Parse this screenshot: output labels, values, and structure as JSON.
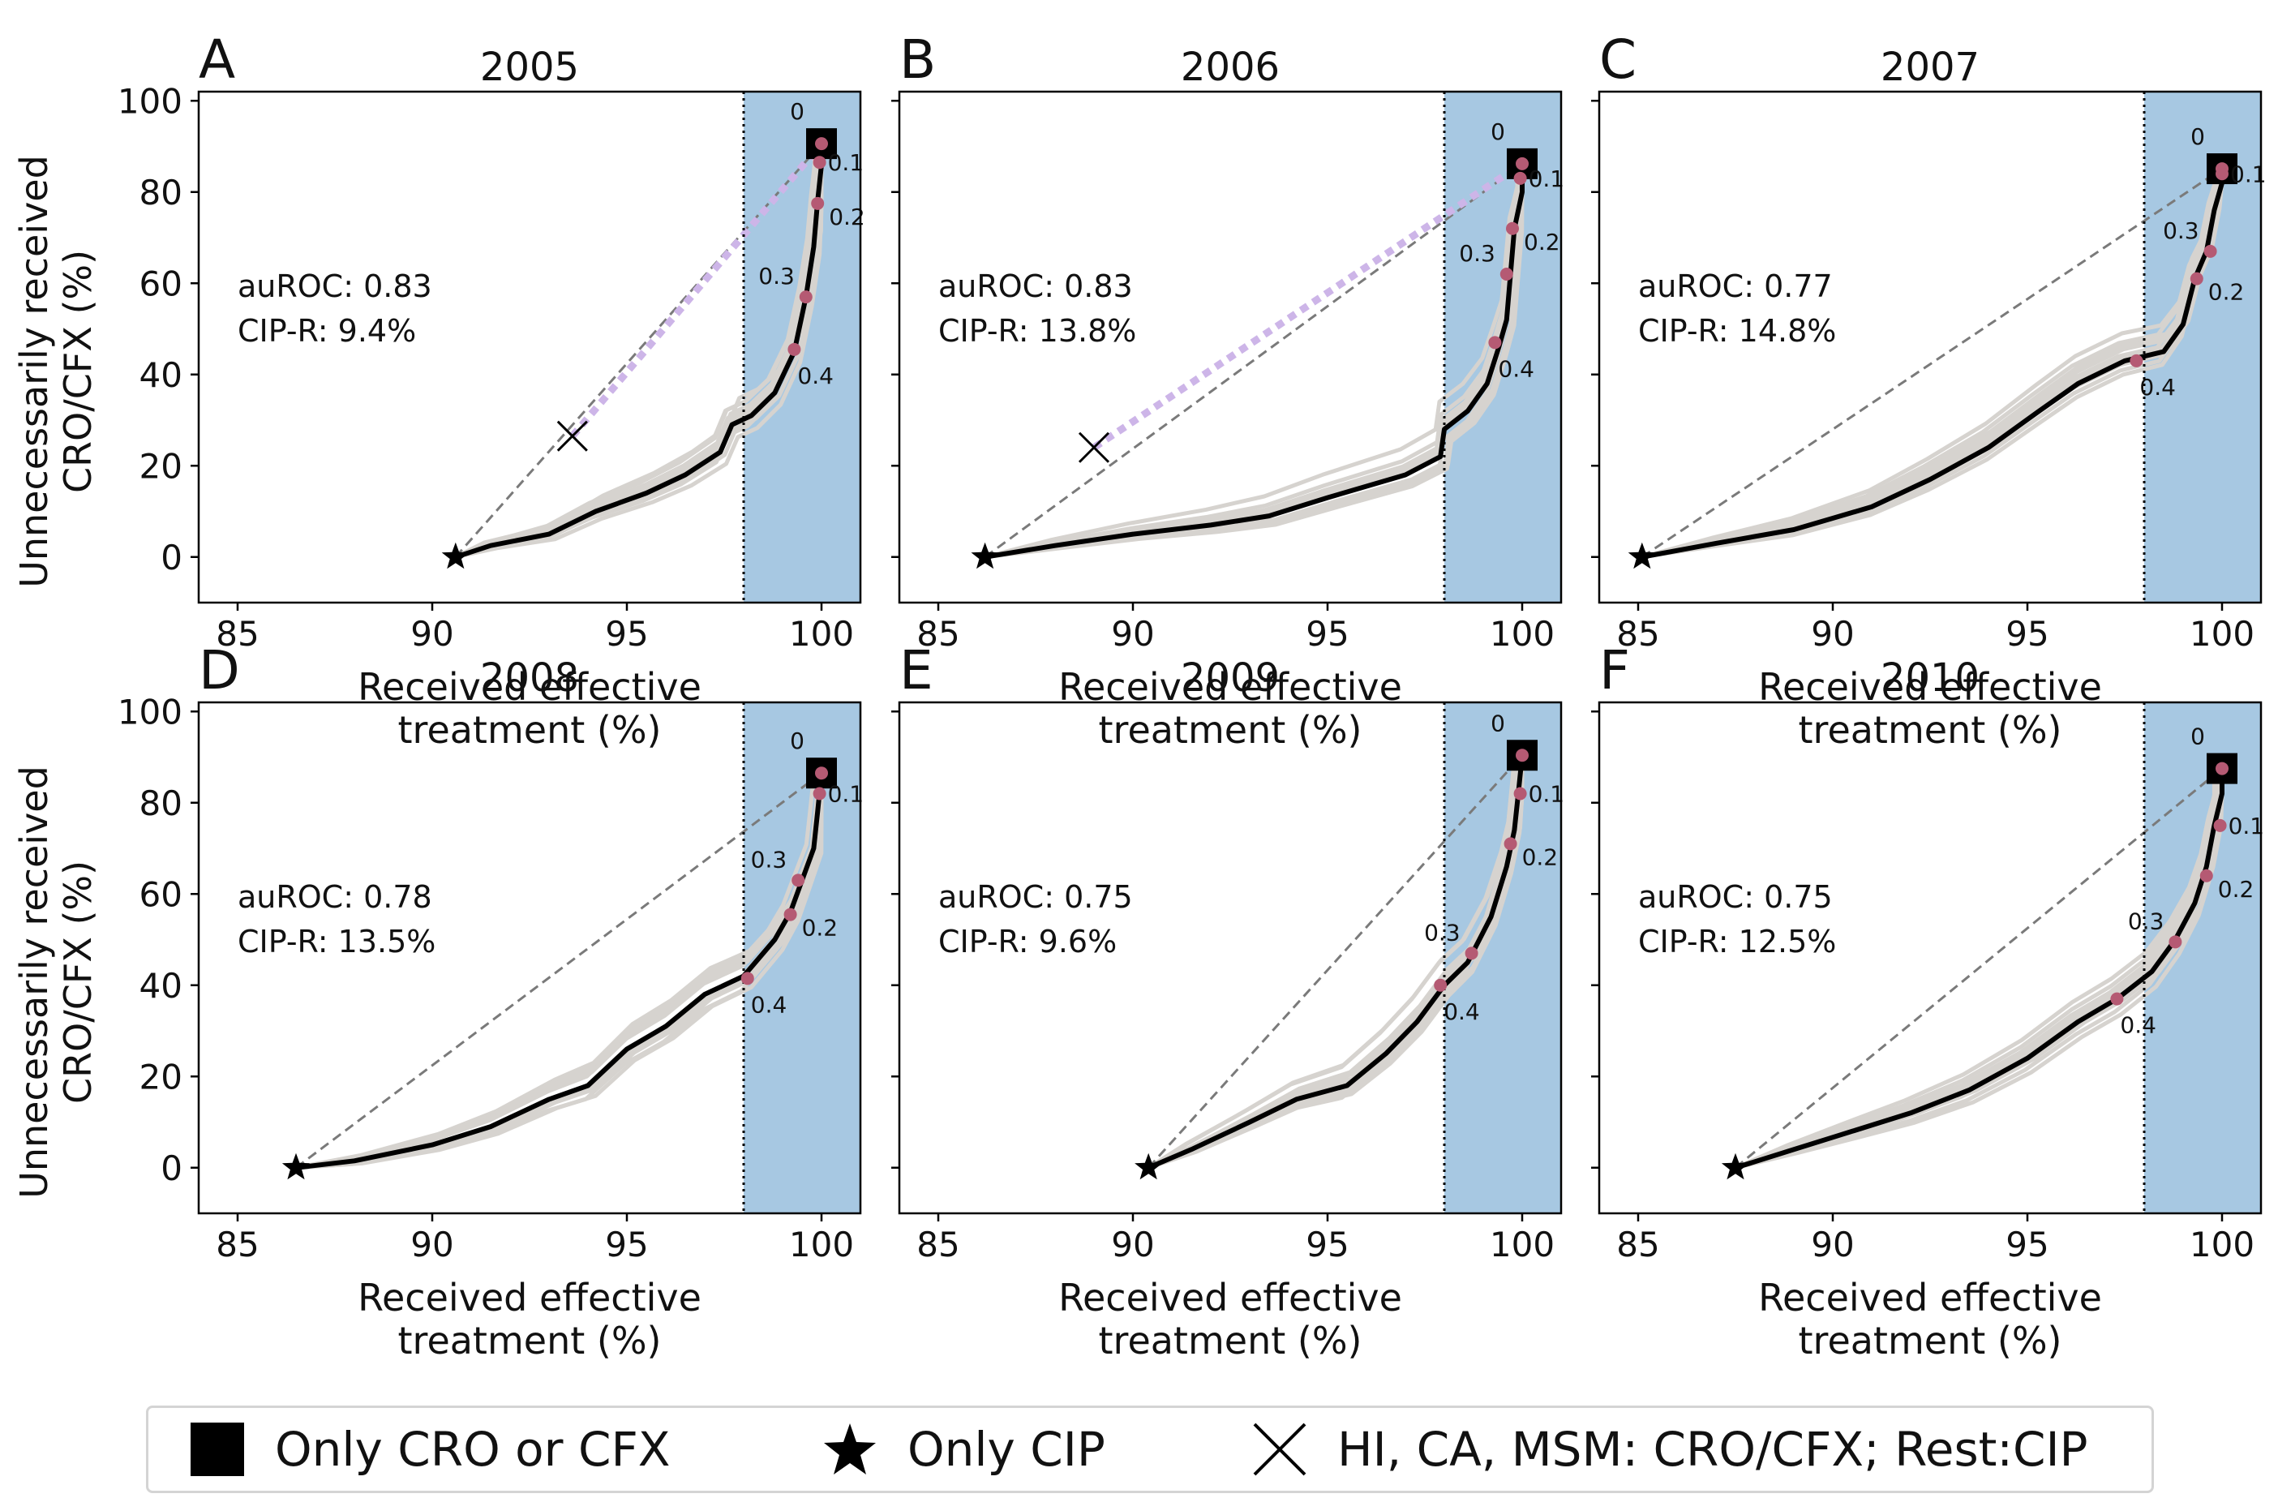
{
  "chart_data": [
    {
      "panel": "A",
      "title": "2005",
      "type": "line",
      "auroc_text": "auROC: 0.83",
      "cipr_text": "CIP-R: 9.4%",
      "xlabel": "Received effective\ntreatment (%)",
      "ylabel": "Unnecessarily received\nCRO/CFX (%)",
      "xlim": [
        84,
        101
      ],
      "ylim": [
        -10,
        102
      ],
      "xticks": [
        "85",
        "90",
        "95",
        "100"
      ],
      "yticks": [
        "0",
        "20",
        "40",
        "60",
        "80",
        "100"
      ],
      "shaded_region_x": [
        98,
        101
      ],
      "threshold_x": 98,
      "start_star": [
        90.6,
        0
      ],
      "end_square": [
        100,
        90.6
      ],
      "cross": [
        93.6,
        26.5
      ],
      "roc_curve": [
        [
          90.6,
          0
        ],
        [
          91.5,
          2.5
        ],
        [
          93.0,
          5
        ],
        [
          94.2,
          10
        ],
        [
          95.5,
          14
        ],
        [
          96.5,
          18
        ],
        [
          97.4,
          23
        ],
        [
          97.7,
          29
        ],
        [
          98.2,
          31
        ],
        [
          98.8,
          36
        ],
        [
          99.3,
          45
        ],
        [
          99.6,
          57
        ],
        [
          99.8,
          68
        ],
        [
          99.9,
          78
        ],
        [
          100,
          86
        ],
        [
          100,
          90.6
        ]
      ],
      "threshold_points": [
        {
          "label": "0",
          "x": 100,
          "y": 90.6
        },
        {
          "label": "0.1",
          "x": 99.95,
          "y": 86.5
        },
        {
          "label": "0.2",
          "x": 99.9,
          "y": 77.5
        },
        {
          "label": "0.3",
          "x": 99.6,
          "y": 57
        },
        {
          "label": "0.4",
          "x": 99.3,
          "y": 45.5
        }
      ],
      "gray_curves": 12
    },
    {
      "panel": "B",
      "title": "2006",
      "type": "line",
      "auroc_text": "auROC: 0.83",
      "cipr_text": "CIP-R: 13.8%",
      "xlabel": "Received effective\ntreatment (%)",
      "ylabel": "",
      "xlim": [
        84,
        101
      ],
      "ylim": [
        -10,
        102
      ],
      "xticks": [
        "85",
        "90",
        "95",
        "100"
      ],
      "yticks": [],
      "shaded_region_x": [
        98,
        101
      ],
      "threshold_x": 98,
      "start_star": [
        86.2,
        0
      ],
      "end_square": [
        100,
        86.2
      ],
      "cross": [
        89.0,
        24
      ],
      "roc_curve": [
        [
          86.2,
          0
        ],
        [
          88,
          2.5
        ],
        [
          90,
          5
        ],
        [
          92,
          7
        ],
        [
          93.5,
          9
        ],
        [
          95,
          13
        ],
        [
          97,
          18
        ],
        [
          97.9,
          22
        ],
        [
          98,
          28
        ],
        [
          98.6,
          32
        ],
        [
          99.1,
          38
        ],
        [
          99.4,
          46
        ],
        [
          99.6,
          52
        ],
        [
          99.7,
          62
        ],
        [
          99.8,
          72
        ],
        [
          100,
          80
        ],
        [
          100,
          86.2
        ]
      ],
      "threshold_points": [
        {
          "label": "0",
          "x": 100,
          "y": 86.2
        },
        {
          "label": "0.1",
          "x": 99.95,
          "y": 83
        },
        {
          "label": "0.2",
          "x": 99.75,
          "y": 72
        },
        {
          "label": "0.3",
          "x": 99.6,
          "y": 62
        },
        {
          "label": "0.4",
          "x": 99.3,
          "y": 47
        }
      ],
      "gray_curves": 12
    },
    {
      "panel": "C",
      "title": "2007",
      "type": "line",
      "auroc_text": "auROC: 0.77",
      "cipr_text": "CIP-R: 14.8%",
      "xlabel": "Received effective\ntreatment (%)",
      "ylabel": "",
      "xlim": [
        84,
        101
      ],
      "ylim": [
        -10,
        102
      ],
      "xticks": [
        "85",
        "90",
        "95",
        "100"
      ],
      "yticks": [],
      "shaded_region_x": [
        98,
        101
      ],
      "threshold_x": 98,
      "start_star": [
        85.1,
        0
      ],
      "end_square": [
        100,
        85.1
      ],
      "cross": null,
      "roc_curve": [
        [
          85.1,
          0
        ],
        [
          87,
          3
        ],
        [
          89,
          6
        ],
        [
          91,
          11
        ],
        [
          92.5,
          17
        ],
        [
          94,
          24
        ],
        [
          95.3,
          32
        ],
        [
          96.3,
          38
        ],
        [
          97.5,
          43
        ],
        [
          98.5,
          45
        ],
        [
          99,
          51
        ],
        [
          99.3,
          61
        ],
        [
          99.6,
          67
        ],
        [
          99.8,
          76
        ],
        [
          100,
          82
        ],
        [
          100,
          85.1
        ]
      ],
      "threshold_points": [
        {
          "label": "0",
          "x": 100,
          "y": 85.1
        },
        {
          "label": "0.1",
          "x": 100,
          "y": 84
        },
        {
          "label": "0.2",
          "x": 99.35,
          "y": 61
        },
        {
          "label": "0.3",
          "x": 99.7,
          "y": 67
        },
        {
          "label": "0.4",
          "x": 97.8,
          "y": 43
        }
      ],
      "gray_curves": 12
    },
    {
      "panel": "D",
      "title": "2008",
      "type": "line",
      "auroc_text": "auROC: 0.78",
      "cipr_text": "CIP-R: 13.5%",
      "xlabel": "Received effective\ntreatment (%)",
      "ylabel": "Unnecessarily received\nCRO/CFX (%)",
      "xlim": [
        84,
        101
      ],
      "ylim": [
        -10,
        102
      ],
      "xticks": [
        "85",
        "90",
        "95",
        "100"
      ],
      "yticks": [
        "0",
        "20",
        "40",
        "60",
        "80",
        "100"
      ],
      "shaded_region_x": [
        98,
        101
      ],
      "threshold_x": 98,
      "start_star": [
        86.5,
        0
      ],
      "end_square": [
        100,
        86.5
      ],
      "cross": null,
      "roc_curve": [
        [
          86.5,
          0
        ],
        [
          88,
          1.5
        ],
        [
          90,
          5
        ],
        [
          91.5,
          9
        ],
        [
          93,
          15
        ],
        [
          94,
          18
        ],
        [
          95,
          26
        ],
        [
          96,
          31
        ],
        [
          97,
          38
        ],
        [
          98,
          42
        ],
        [
          98.8,
          50
        ],
        [
          99.2,
          56
        ],
        [
          99.5,
          63
        ],
        [
          99.8,
          70
        ],
        [
          99.9,
          78
        ],
        [
          100,
          86.5
        ]
      ],
      "threshold_points": [
        {
          "label": "0",
          "x": 100,
          "y": 86.5
        },
        {
          "label": "0.1",
          "x": 99.95,
          "y": 82
        },
        {
          "label": "0.2",
          "x": 99.2,
          "y": 55.5
        },
        {
          "label": "0.3",
          "x": 99.4,
          "y": 63
        },
        {
          "label": "0.4",
          "x": 98.1,
          "y": 41.5
        }
      ],
      "gray_curves": 12
    },
    {
      "panel": "E",
      "title": "2009",
      "type": "line",
      "auroc_text": "auROC: 0.75",
      "cipr_text": "CIP-R: 9.6%",
      "xlabel": "Received effective\ntreatment (%)",
      "ylabel": "",
      "xlim": [
        84,
        101
      ],
      "ylim": [
        -10,
        102
      ],
      "xticks": [
        "85",
        "90",
        "95",
        "100"
      ],
      "yticks": [],
      "shaded_region_x": [
        98,
        101
      ],
      "threshold_x": 98,
      "start_star": [
        90.4,
        0
      ],
      "end_square": [
        100,
        90.4
      ],
      "cross": null,
      "roc_curve": [
        [
          90.4,
          0
        ],
        [
          91.5,
          4
        ],
        [
          93,
          10
        ],
        [
          94.2,
          15
        ],
        [
          95.5,
          18
        ],
        [
          96.5,
          25
        ],
        [
          97.3,
          32
        ],
        [
          98,
          40
        ],
        [
          98.6,
          45
        ],
        [
          99.2,
          55
        ],
        [
          99.6,
          66
        ],
        [
          99.8,
          74
        ],
        [
          99.9,
          82
        ],
        [
          100,
          90.4
        ]
      ],
      "threshold_points": [
        {
          "label": "0",
          "x": 100,
          "y": 90.4
        },
        {
          "label": "0.1",
          "x": 99.95,
          "y": 82
        },
        {
          "label": "0.2",
          "x": 99.7,
          "y": 71
        },
        {
          "label": "0.3",
          "x": 98.7,
          "y": 47
        },
        {
          "label": "0.4",
          "x": 97.9,
          "y": 40
        }
      ],
      "gray_curves": 12
    },
    {
      "panel": "F",
      "title": "2010",
      "type": "line",
      "auroc_text": "auROC: 0.75",
      "cipr_text": "CIP-R: 12.5%",
      "xlabel": "Received effective\ntreatment (%)",
      "ylabel": "",
      "xlim": [
        84,
        101
      ],
      "ylim": [
        -10,
        102
      ],
      "xticks": [
        "85",
        "90",
        "95",
        "100"
      ],
      "yticks": [],
      "shaded_region_x": [
        98,
        101
      ],
      "threshold_x": 98,
      "start_star": [
        87.5,
        0
      ],
      "end_square": [
        100,
        87.5
      ],
      "cross": null,
      "roc_curve": [
        [
          87.5,
          0
        ],
        [
          89,
          4
        ],
        [
          90.5,
          8
        ],
        [
          92,
          12
        ],
        [
          93.5,
          17
        ],
        [
          95,
          24
        ],
        [
          96.3,
          32
        ],
        [
          97.3,
          37
        ],
        [
          98.2,
          43
        ],
        [
          98.8,
          50
        ],
        [
          99.3,
          58
        ],
        [
          99.6,
          66
        ],
        [
          99.8,
          75
        ],
        [
          100,
          82
        ],
        [
          100,
          87.5
        ]
      ],
      "threshold_points": [
        {
          "label": "0",
          "x": 100,
          "y": 87.5
        },
        {
          "label": "0.1",
          "x": 99.95,
          "y": 75
        },
        {
          "label": "0.2",
          "x": 99.6,
          "y": 64
        },
        {
          "label": "0.3",
          "x": 98.8,
          "y": 49.5
        },
        {
          "label": "0.4",
          "x": 97.3,
          "y": 37
        }
      ],
      "gray_curves": 12
    }
  ],
  "legend": [
    {
      "marker": "square",
      "label": "Only CRO or CFX"
    },
    {
      "marker": "star",
      "label": "Only CIP"
    },
    {
      "marker": "cross",
      "label": "HI, CA, MSM: CRO/CFX; Rest:CIP"
    }
  ],
  "colors": {
    "shade": "#a7c8e2",
    "roc_line": "#000000",
    "gray_curves": "#d6d3cf",
    "threshold_dots": "#b55a73",
    "dashed_line": "#7a7a7a",
    "dotted_purple": "#cdb5e8"
  }
}
